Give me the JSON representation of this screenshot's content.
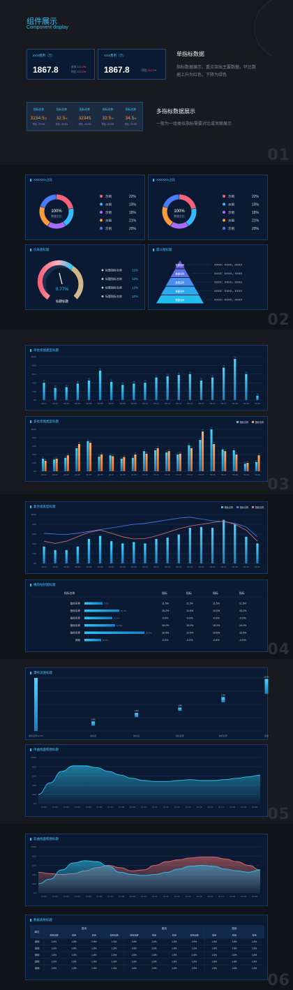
{
  "header": {
    "title": "组件展示",
    "subtitle": "Component display"
  },
  "single_indicator": {
    "heading": "单指标数据",
    "desc_lines": [
      "指标数据展示，重点突出主要数据，环比数",
      "据上升为红色，下降为绿色"
    ],
    "cards": [
      {
        "label": "XXX费用（万）",
        "value": "1867.8",
        "rows": [
          {
            "k": "去年",
            "v": "112.2%"
          },
          {
            "k": "环比",
            "v": "112.2%"
          }
        ]
      },
      {
        "label": "XXX费用（万）",
        "value": "1867.8",
        "rows": [
          {
            "k": "环比",
            "v": "112.2%"
          }
        ]
      }
    ]
  },
  "multi_indicator": {
    "heading": "多指标数据展示",
    "desc": "一般为一组类似指标需要对比或关联展示",
    "items": [
      {
        "label": "指标名称",
        "value": "3234.5",
        "unit": "万",
        "sub": "环比 -23.3%"
      },
      {
        "label": "指标名称",
        "value": "32.5",
        "unit": "%",
        "sub": "环比 -23.3%"
      },
      {
        "label": "指标名称",
        "value": "32345",
        "unit": "",
        "sub": "环比 -23.3%"
      },
      {
        "label": "指标名称",
        "value": "32.5",
        "unit": "%",
        "sub": "环比 -23.3%"
      },
      {
        "label": "指标名称",
        "value": "34.5",
        "unit": "%",
        "sub": "环比 -23.3%"
      }
    ]
  },
  "sections": [
    "01",
    "02",
    "03",
    "04",
    "05",
    "06"
  ],
  "donuts": [
    {
      "title": "XXXXXX占比",
      "center_value": "100%",
      "center_label": "数据总比",
      "legend": [
        {
          "name": "示例",
          "value": "22%",
          "color": "#f7647a"
        },
        {
          "name": "示例",
          "value": "19%",
          "color": "#37b8ff"
        },
        {
          "name": "示例",
          "value": "18%",
          "color": "#a86bff"
        },
        {
          "name": "示例",
          "value": "21%",
          "color": "#ff9a3c"
        },
        {
          "name": "示例",
          "value": "20%",
          "color": "#4b7bff"
        }
      ]
    },
    {
      "title": "XXXXXX占比",
      "center_value": "100%",
      "center_label": "数据总比",
      "legend": [
        {
          "name": "示例",
          "value": "22%",
          "color": "#f7647a"
        },
        {
          "name": "示例",
          "value": "19%",
          "color": "#37b8ff"
        },
        {
          "name": "示例",
          "value": "18%",
          "color": "#a86bff"
        },
        {
          "name": "示例",
          "value": "21%",
          "color": "#ff9a3c"
        },
        {
          "name": "示例",
          "value": "20%",
          "color": "#4b7bff"
        }
      ]
    }
  ],
  "gauge": {
    "title": "仪表盘标题",
    "value": "0.77",
    "unit": "%",
    "label": "标题标题",
    "legend": [
      {
        "name": "标题指标名称",
        "value": "12%"
      },
      {
        "name": "标题指标名称",
        "value": "12%"
      },
      {
        "name": "标题指标名称",
        "value": "12%"
      },
      {
        "name": "标题指标名称",
        "value": "12%"
      }
    ]
  },
  "funnel": {
    "title": "漏斗图标题",
    "levels": [
      "数据名称",
      "数据名称",
      "数据名称",
      "数据名称",
      "数据名称"
    ],
    "line_label": "XXXX：XXXX，XXXX"
  },
  "bar1": {
    "title": "单柱状图类型标题"
  },
  "bar2": {
    "title": "多柱状图类型标题",
    "legend": [
      "指标名称",
      "指标名称"
    ]
  },
  "combo": {
    "title": "复合组类型标题",
    "legend": [
      "指标名称",
      "指标名称",
      "指标名称"
    ]
  },
  "hbar": {
    "title": "横向柱状图标题",
    "headers": [
      "指标名称",
      "指标",
      "指标",
      "指标",
      "指标"
    ],
    "rows": [
      {
        "name": "指标名称",
        "v": "7.0%",
        "c": [
          "11.5%",
          "11.5%",
          "11.5%",
          "11.5%"
        ]
      },
      {
        "name": "指标名称",
        "v": "15.2%",
        "c": [
          "15.2%",
          "10.5%",
          "10.5%",
          "15.2%"
        ]
      },
      {
        "name": "指标名称",
        "v": "15.2%",
        "c": [
          "-0.0%",
          "-0.0%",
          "-0.0%",
          "-0.0%"
        ]
      },
      {
        "name": "指标名称",
        "v": "10.5%",
        "c": [
          "15.2%",
          "15.2%",
          "15.2%",
          "15.2%"
        ]
      },
      {
        "name": "指标名称",
        "v": "28.4%",
        "c": [
          "10.5%",
          "10.5%",
          "10.5%",
          "10.5%"
        ]
      },
      {
        "name": "其他",
        "v": "10.5%",
        "c": [
          "-0.0%",
          "-0.0%",
          "-0.0%",
          "-0.0%"
        ]
      }
    ]
  },
  "waterfall": {
    "title": "瀑布流图标题",
    "categories": [
      "指标名称12.6%",
      "指标名",
      "指标名",
      "指标名称",
      "指标名称",
      "其他"
    ],
    "labels": [
      "",
      "1.9%",
      "1.9%",
      "1.9%",
      "1.9%",
      "15.5%"
    ]
  },
  "area1": {
    "title": "单曲线面积图标题"
  },
  "area2": {
    "title": "双曲线面积图标题"
  },
  "table": {
    "title": "数据表格标题",
    "head1": [
      "单位",
      "费用",
      "费用",
      "费用"
    ],
    "head2": [
      "费用本期",
      "费用",
      "费用",
      "费用本期",
      "费用本期",
      "费用",
      "费用",
      "费用本期",
      "费用",
      "费用",
      "费用"
    ],
    "rows": [
      {
        "name": "深圳",
        "cells": [
          "1.6%",
          "1.6%",
          "1.6%",
          "1.6%",
          "1.6%",
          "1.6%",
          "1.6%",
          "1.6%",
          "1.6%",
          "1.6%",
          "1.6%"
        ]
      },
      {
        "name": "深圳",
        "cells": [
          "1.6%",
          "1.6%",
          "1.6%",
          "1.6%",
          "1.6%",
          "1.6%",
          "1.6%",
          "1.6%",
          "1.6%",
          "1.6%",
          "1.6%"
        ]
      },
      {
        "name": "深圳",
        "cells": [
          "1.6%",
          "1.6%",
          "1.6%",
          "1.6%",
          "1.6%",
          "1.6%",
          "1.6%",
          "1.6%",
          "1.6%",
          "1.6%",
          "1.6%"
        ]
      },
      {
        "name": "深圳",
        "cells": [
          "1.6%",
          "1.6%",
          "1.6%",
          "1.6%",
          "1.6%",
          "1.6%",
          "1.6%",
          "1.6%",
          "1.6%",
          "1.6%",
          "1.6%"
        ]
      },
      {
        "name": "深圳",
        "cells": [
          "1.6%",
          "1.6%",
          "1.6%",
          "1.6%",
          "1.6%",
          "1.6%",
          "1.6%",
          "1.6%",
          "1.6%",
          "1.6%",
          "1.6%"
        ]
      }
    ]
  },
  "chart_data": [
    {
      "type": "bar",
      "categories": [
        "06-01",
        "06-02",
        "06-03",
        "06-04",
        "06-05",
        "06-06",
        "06-07",
        "06-08",
        "06-09",
        "06-10",
        "06-11",
        "06-12",
        "06-13",
        "06-14",
        "06-15",
        "06-16",
        "06-17",
        "06-18",
        "06-19",
        "06-20"
      ],
      "values": [
        40,
        28,
        30,
        38,
        45,
        68,
        42,
        35,
        38,
        40,
        52,
        55,
        58,
        60,
        45,
        52,
        75,
        95,
        60,
        10
      ],
      "ylim": [
        0,
        100
      ],
      "color": "#2ec6f2"
    },
    {
      "type": "bar",
      "categories": [
        "06-01",
        "06-02",
        "06-03",
        "06-04",
        "06-05",
        "06-06",
        "06-07",
        "06-08",
        "06-09",
        "06-10",
        "06-11",
        "06-12",
        "06-13",
        "06-14",
        "06-15",
        "06-16",
        "06-17",
        "06-18",
        "06-19",
        "06-20"
      ],
      "series": [
        {
          "name": "指标名称",
          "values": [
            30,
            28,
            32,
            55,
            72,
            35,
            38,
            30,
            32,
            48,
            50,
            45,
            40,
            62,
            75,
            100,
            52,
            50,
            18,
            22
          ],
          "color": "#2ec6f2"
        },
        {
          "name": "指标名称",
          "values": [
            25,
            30,
            38,
            65,
            68,
            40,
            36,
            34,
            40,
            42,
            55,
            48,
            42,
            55,
            95,
            65,
            48,
            40,
            20,
            38
          ],
          "color": "#ff9a3c"
        }
      ],
      "ylim": [
        0,
        100
      ]
    },
    {
      "type": "bar",
      "categories": [
        "06-01",
        "06-02",
        "06-03",
        "06-04",
        "06-05",
        "06-06",
        "06-07",
        "06-08",
        "06-09",
        "06-10",
        "06-11",
        "06-12",
        "06-13",
        "06-14",
        "06-15",
        "06-16",
        "06-17",
        "06-18",
        "06-19",
        "06-20"
      ],
      "series": [
        {
          "name": "指标名称",
          "values": [
            38,
            30,
            30,
            38,
            55,
            62,
            50,
            45,
            48,
            45,
            55,
            58,
            65,
            80,
            82,
            80,
            98,
            88,
            60,
            45
          ],
          "color": "#2ec6f2"
        },
        {
          "name": "指标名称",
          "values": [
            68,
            66,
            65,
            68,
            72,
            76,
            80,
            84,
            88,
            90,
            94,
            98,
            102,
            104,
            100,
            96,
            94,
            90,
            82,
            60
          ],
          "color": "#4b7bff"
        },
        {
          "name": "指标名称",
          "values": [
            50,
            45,
            50,
            60,
            70,
            75,
            68,
            60,
            55,
            56,
            62,
            70,
            78,
            84,
            88,
            92,
            95,
            88,
            75,
            50
          ],
          "color": "#e36d6d"
        }
      ],
      "ylim": [
        0,
        100
      ]
    },
    {
      "type": "bar",
      "categories": [
        "指标名称12.6%",
        "指标名",
        "指标名",
        "指标名称",
        "指标名称",
        "其他"
      ],
      "values": [
        100,
        10,
        10,
        18,
        12,
        30
      ],
      "ylim": [
        0,
        100
      ]
    },
    {
      "type": "area",
      "x": [
        "07-01",
        "07-02",
        "07-03",
        "07-04",
        "07-05",
        "07-06",
        "07-07",
        "07-08",
        "07-09",
        "07-10",
        "07-11",
        "07-12",
        "07-13",
        "07-14",
        "07-15",
        "07-16",
        "07-17",
        "07-18",
        "07-19",
        "07-20"
      ],
      "values": [
        20,
        45,
        70,
        82,
        82,
        78,
        70,
        62,
        55,
        50,
        48,
        48,
        50,
        52,
        50,
        50,
        52,
        55,
        58,
        62
      ],
      "ylim": [
        0,
        100
      ]
    },
    {
      "type": "area",
      "x": [
        "07-01",
        "07-02",
        "07-03",
        "07-04",
        "07-05",
        "07-06",
        "07-07",
        "07-08",
        "07-09",
        "07-10",
        "07-11",
        "07-12",
        "07-13",
        "07-14",
        "07-15",
        "07-16",
        "07-17",
        "07-18",
        "07-19",
        "07-20"
      ],
      "series": [
        {
          "name": "A",
          "values": [
            20,
            30,
            50,
            65,
            70,
            68,
            58,
            45,
            40,
            38,
            40,
            45,
            52,
            58,
            60,
            58,
            52,
            48,
            45,
            50
          ],
          "color": "#2ec6f2"
        },
        {
          "name": "B",
          "values": [
            45,
            42,
            40,
            42,
            48,
            55,
            60,
            55,
            48,
            50,
            60,
            68,
            72,
            76,
            78,
            78,
            74,
            68,
            60,
            50
          ],
          "color": "#e36d6d"
        }
      ],
      "ylim": [
        0,
        100
      ]
    }
  ]
}
